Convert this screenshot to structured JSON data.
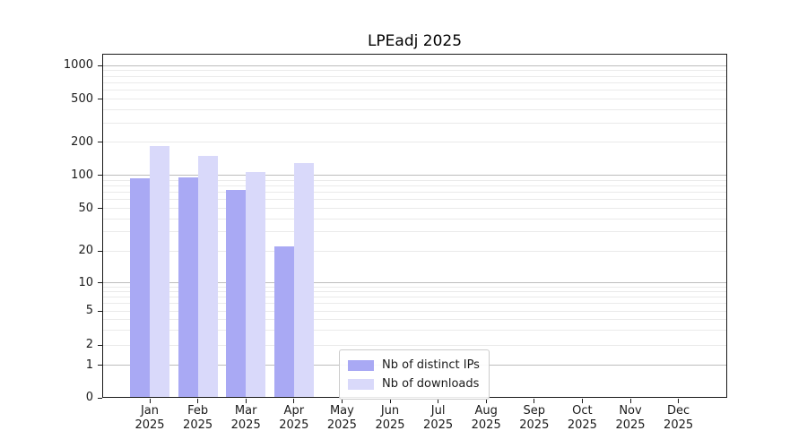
{
  "title": "LPEadj 2025",
  "chart_data": {
    "type": "bar",
    "title": "LPEadj 2025",
    "xlabel": "",
    "ylabel": "",
    "yscale": "symlog",
    "ylim": [
      0,
      1260
    ],
    "grid": true,
    "legend_position": "lower center",
    "background_color": "#ffffff",
    "yticks": [
      1000,
      500,
      200,
      100,
      50,
      20,
      10,
      5,
      2,
      1,
      0
    ],
    "categories": [
      "Jan 2025",
      "Feb 2025",
      "Mar 2025",
      "Apr 2025",
      "May 2025",
      "Jun 2025",
      "Jul 2025",
      "Aug 2025",
      "Sep 2025",
      "Oct 2025",
      "Nov 2025",
      "Dec 2025"
    ],
    "series": [
      {
        "name": "Nb of distinct IPs",
        "color": "#a9a9f4",
        "values": [
          94,
          96,
          74,
          22,
          null,
          null,
          null,
          null,
          null,
          null,
          null,
          null
        ]
      },
      {
        "name": "Nb of downloads",
        "color": "#d9d9fa",
        "values": [
          185,
          150,
          107,
          128,
          null,
          null,
          null,
          null,
          null,
          null,
          null,
          null
        ]
      }
    ]
  }
}
